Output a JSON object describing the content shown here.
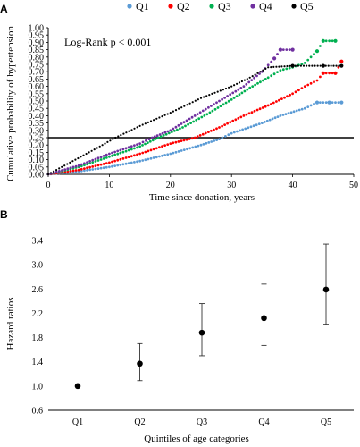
{
  "chart_data": [
    {
      "panel": "A",
      "type": "scatter",
      "annotation": "Log-Rank p < 0.001",
      "xlabel": "Time since donation, years",
      "ylabel": "Cumulative probability of hypertension",
      "xlim": [
        0,
        50
      ],
      "ylim": [
        0,
        1.0
      ],
      "xticks": [
        "0",
        "10",
        "20",
        "30",
        "40",
        "50"
      ],
      "yticks": [
        "0.00",
        "0.05",
        "0.10",
        "0.15",
        "0.20",
        "0.25",
        "0.30",
        "0.35",
        "0.40",
        "0.45",
        "0.50",
        "0.55",
        "0.60",
        "0.65",
        "0.70",
        "0.75",
        "0.80",
        "0.85",
        "0.90",
        "0.95",
        "1.00"
      ],
      "reference_line_y": 0.25,
      "legend_position": "top",
      "series": [
        {
          "name": "Q1",
          "color": "#5b9bd5",
          "points": [
            [
              0,
              0
            ],
            [
              5,
              0.02
            ],
            [
              10,
              0.05
            ],
            [
              15,
              0.09
            ],
            [
              20,
              0.14
            ],
            [
              25,
              0.2
            ],
            [
              28,
              0.24
            ],
            [
              30,
              0.28
            ],
            [
              35,
              0.35
            ],
            [
              38,
              0.4
            ],
            [
              42,
              0.45
            ],
            [
              44,
              0.49
            ],
            [
              46,
              0.49
            ],
            [
              48,
              0.49
            ]
          ]
        },
        {
          "name": "Q2",
          "color": "#ff0000",
          "points": [
            [
              0,
              0
            ],
            [
              5,
              0.03
            ],
            [
              10,
              0.08
            ],
            [
              15,
              0.14
            ],
            [
              20,
              0.21
            ],
            [
              24,
              0.25
            ],
            [
              28,
              0.32
            ],
            [
              32,
              0.4
            ],
            [
              36,
              0.47
            ],
            [
              40,
              0.55
            ],
            [
              42,
              0.6
            ],
            [
              44,
              0.64
            ],
            [
              45,
              0.69
            ],
            [
              47,
              0.69
            ],
            [
              48,
              0.77
            ]
          ]
        },
        {
          "name": "Q3",
          "color": "#00b050",
          "points": [
            [
              0,
              0
            ],
            [
              5,
              0.05
            ],
            [
              10,
              0.12
            ],
            [
              15,
              0.19
            ],
            [
              18,
              0.25
            ],
            [
              22,
              0.32
            ],
            [
              26,
              0.41
            ],
            [
              30,
              0.51
            ],
            [
              33,
              0.59
            ],
            [
              36,
              0.66
            ],
            [
              38,
              0.71
            ],
            [
              40,
              0.73
            ],
            [
              42,
              0.76
            ],
            [
              44,
              0.84
            ],
            [
              45,
              0.91
            ],
            [
              47,
              0.91
            ]
          ]
        },
        {
          "name": "Q4",
          "color": "#7030a0",
          "points": [
            [
              0,
              0
            ],
            [
              5,
              0.06
            ],
            [
              10,
              0.14
            ],
            [
              15,
              0.21
            ],
            [
              17,
              0.25
            ],
            [
              20,
              0.3
            ],
            [
              24,
              0.4
            ],
            [
              28,
              0.5
            ],
            [
              32,
              0.6
            ],
            [
              35,
              0.7
            ],
            [
              37,
              0.79
            ],
            [
              38,
              0.85
            ],
            [
              40,
              0.85
            ]
          ]
        },
        {
          "name": "Q5",
          "color": "#000000",
          "points": [
            [
              0,
              0
            ],
            [
              4,
              0.09
            ],
            [
              8,
              0.18
            ],
            [
              11,
              0.25
            ],
            [
              15,
              0.33
            ],
            [
              20,
              0.42
            ],
            [
              25,
              0.52
            ],
            [
              30,
              0.6
            ],
            [
              33,
              0.66
            ],
            [
              36,
              0.73
            ],
            [
              40,
              0.74
            ],
            [
              45,
              0.74
            ],
            [
              48,
              0.74
            ]
          ]
        }
      ]
    },
    {
      "panel": "B",
      "type": "scatter",
      "xlabel": "Quintiles of age categories",
      "ylabel": "Hazard ratios",
      "categories": [
        "Q1",
        "Q2",
        "Q3",
        "Q4",
        "Q5"
      ],
      "yticks": [
        "0.6",
        "1.0",
        "1.4",
        "1.8",
        "2.2",
        "2.6",
        "3.0",
        "3.4"
      ],
      "ylim": [
        0.6,
        3.4
      ],
      "values": [
        1.0,
        1.37,
        1.88,
        2.12,
        2.59
      ],
      "lower": [
        1.0,
        1.09,
        1.5,
        1.67,
        2.02
      ],
      "upper": [
        1.0,
        1.7,
        2.36,
        2.68,
        3.34
      ]
    }
  ]
}
